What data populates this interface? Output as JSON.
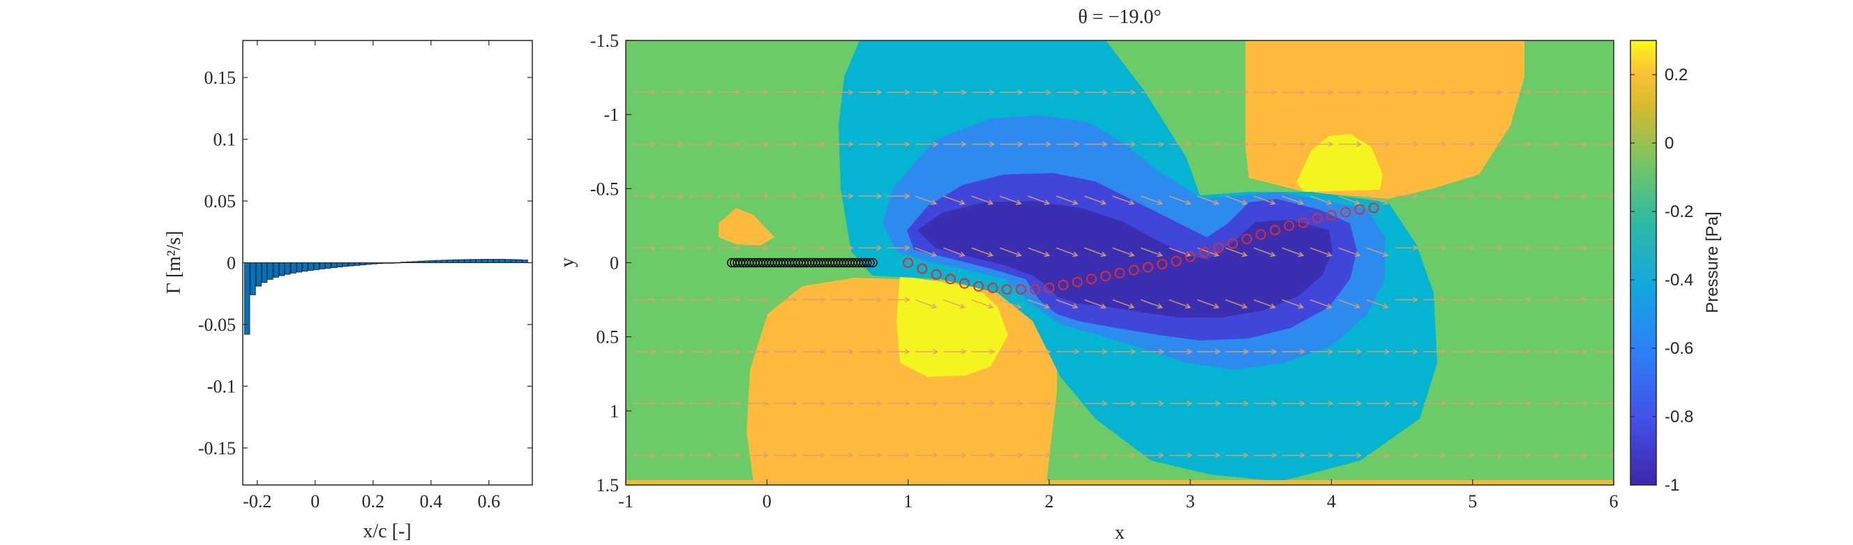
{
  "chart_data": [
    {
      "type": "bar",
      "xlabel": "x/c [-]",
      "ylabel": "Γ [m²/s]",
      "xlim": [
        -0.25,
        0.75
      ],
      "ylim": [
        -0.18,
        0.18
      ],
      "xticks": [
        -0.2,
        0,
        0.2,
        0.4,
        0.6
      ],
      "xtick_labels": [
        "-0.2",
        "0",
        "0.2",
        "0.4",
        "0.6"
      ],
      "yticks": [
        0.15,
        0.1,
        0.05,
        0,
        -0.05,
        -0.1,
        -0.15
      ],
      "ytick_labels": [
        "0.15",
        "0.1",
        "0.05",
        "0",
        "-0.05",
        "-0.1",
        "-0.15"
      ],
      "bar_color": "#0072BD",
      "x": [
        -0.235,
        -0.215,
        -0.195,
        -0.175,
        -0.155,
        -0.135,
        -0.115,
        -0.095,
        -0.075,
        -0.055,
        -0.035,
        -0.015,
        0.005,
        0.025,
        0.045,
        0.065,
        0.085,
        0.105,
        0.125,
        0.145,
        0.165,
        0.185,
        0.205,
        0.225,
        0.245,
        0.265,
        0.285,
        0.305,
        0.325,
        0.345,
        0.365,
        0.385,
        0.405,
        0.425,
        0.445,
        0.465,
        0.485,
        0.505,
        0.525,
        0.545,
        0.565,
        0.585,
        0.605,
        0.625,
        0.645,
        0.665,
        0.685,
        0.705,
        0.725
      ],
      "values": [
        -0.058,
        -0.026,
        -0.019,
        -0.016,
        -0.0135,
        -0.0118,
        -0.0105,
        -0.0094,
        -0.0084,
        -0.0076,
        -0.0069,
        -0.0062,
        -0.0056,
        -0.005,
        -0.0045,
        -0.004,
        -0.0035,
        -0.003,
        -0.0026,
        -0.0022,
        -0.0018,
        -0.0014,
        -0.001,
        -0.0007,
        -0.0004,
        -0.0001,
        0.0002,
        0.0005,
        0.0008,
        0.001,
        0.0013,
        0.0015,
        0.0017,
        0.0019,
        0.0021,
        0.0022,
        0.0024,
        0.0025,
        0.0026,
        0.0027,
        0.0027,
        0.0028,
        0.0028,
        0.0028,
        0.0028,
        0.0027,
        0.0026,
        0.0025,
        0.0022
      ]
    },
    {
      "type": "heatmap",
      "title": "θ = −19.0°",
      "xlabel": "x",
      "ylabel": "y",
      "xlim": [
        -1,
        6
      ],
      "ylim": [
        -1.5,
        1.5
      ],
      "y_reversed": true,
      "xticks": [
        -1,
        0,
        1,
        2,
        3,
        4,
        5,
        6
      ],
      "xtick_labels": [
        "-1",
        "0",
        "1",
        "2",
        "3",
        "4",
        "5",
        "6"
      ],
      "yticks": [
        -1.5,
        -1,
        -0.5,
        0,
        0.5,
        1,
        1.5
      ],
      "ytick_labels": [
        "-1.5",
        "-1",
        "-0.5",
        "0",
        "0.5",
        "1",
        "1.5"
      ],
      "colorbar": {
        "label": "Pressure [Pa]",
        "range": [
          -1,
          0.3
        ],
        "ticks": [
          0.2,
          0,
          -0.2,
          -0.4,
          -0.6,
          -0.8,
          -1
        ],
        "tick_labels": [
          "0.2",
          "0",
          "-0.2",
          "-0.4",
          "-0.6",
          "-0.8",
          "-1"
        ],
        "colormap": "parula"
      },
      "contour_levels": [
        {
          "level": -0.2,
          "color": "#6ACB67"
        },
        {
          "level": 0.1,
          "color": "#FDBA3D"
        },
        {
          "level": 0.25,
          "color": "#F4F41E"
        },
        {
          "level": -0.45,
          "color": "#04B4D0"
        },
        {
          "level": -0.65,
          "color": "#2D8BF0"
        },
        {
          "level": -0.85,
          "color": "#3F46D9"
        },
        {
          "level": -0.95,
          "color": "#3A2FB0"
        }
      ],
      "black_markers": {
        "x_start": -0.25,
        "x_end": 0.75,
        "y": 0,
        "count": 50
      },
      "red_markers": {
        "x": [
          1.0,
          1.1,
          1.2,
          1.3,
          1.4,
          1.5,
          1.6,
          1.7,
          1.8,
          1.9,
          2.0,
          2.1,
          2.2,
          2.3,
          2.4,
          2.5,
          2.6,
          2.7,
          2.8,
          2.9,
          3.0,
          3.1,
          3.2,
          3.3,
          3.4,
          3.5,
          3.6,
          3.7,
          3.8,
          3.9,
          4.0,
          4.1,
          4.2,
          4.3
        ],
        "y": [
          0.0,
          0.04,
          0.08,
          0.11,
          0.14,
          0.16,
          0.17,
          0.18,
          0.18,
          0.18,
          0.17,
          0.15,
          0.13,
          0.11,
          0.09,
          0.07,
          0.05,
          0.03,
          0.01,
          -0.01,
          -0.04,
          -0.07,
          -0.1,
          -0.13,
          -0.16,
          -0.19,
          -0.22,
          -0.25,
          -0.27,
          -0.3,
          -0.32,
          -0.34,
          -0.36,
          -0.37
        ],
        "color": "#E52A2A"
      },
      "quiver_color": "#E0A070"
    }
  ]
}
